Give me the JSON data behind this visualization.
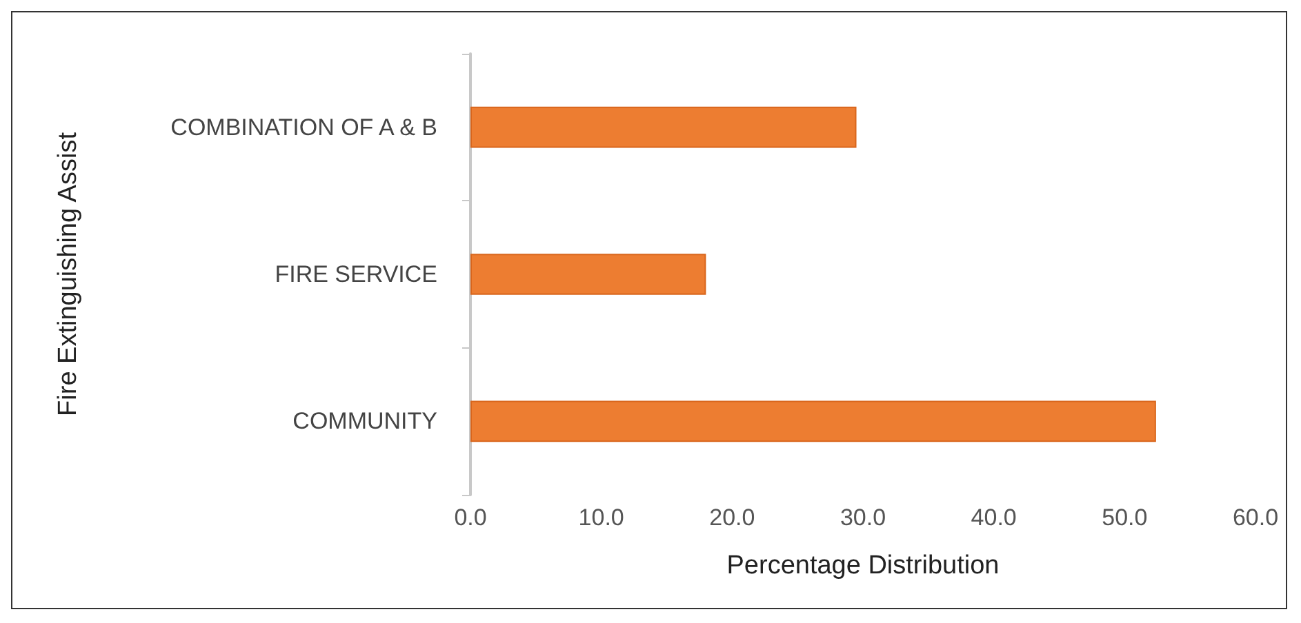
{
  "chart_data": {
    "type": "bar",
    "orientation": "horizontal",
    "xlabel": "Percentage Distribution",
    "ylabel": "Fire Extinguishing Assist",
    "categories": [
      "COMBINATION OF A & B",
      "FIRE SERVICE",
      "COMMUNITY"
    ],
    "values": [
      29.5,
      18.0,
      52.4
    ],
    "color": "#ed7d31",
    "xlim": [
      0,
      60
    ],
    "xticks": [
      {
        "value": 0,
        "label": "0.0"
      },
      {
        "value": 10,
        "label": "10.0"
      },
      {
        "value": 20,
        "label": "20.0"
      },
      {
        "value": 30,
        "label": "30.0"
      },
      {
        "value": 40,
        "label": "40.0"
      },
      {
        "value": 50,
        "label": "50.0"
      },
      {
        "value": 60,
        "label": "60.0"
      }
    ],
    "grid": false
  }
}
